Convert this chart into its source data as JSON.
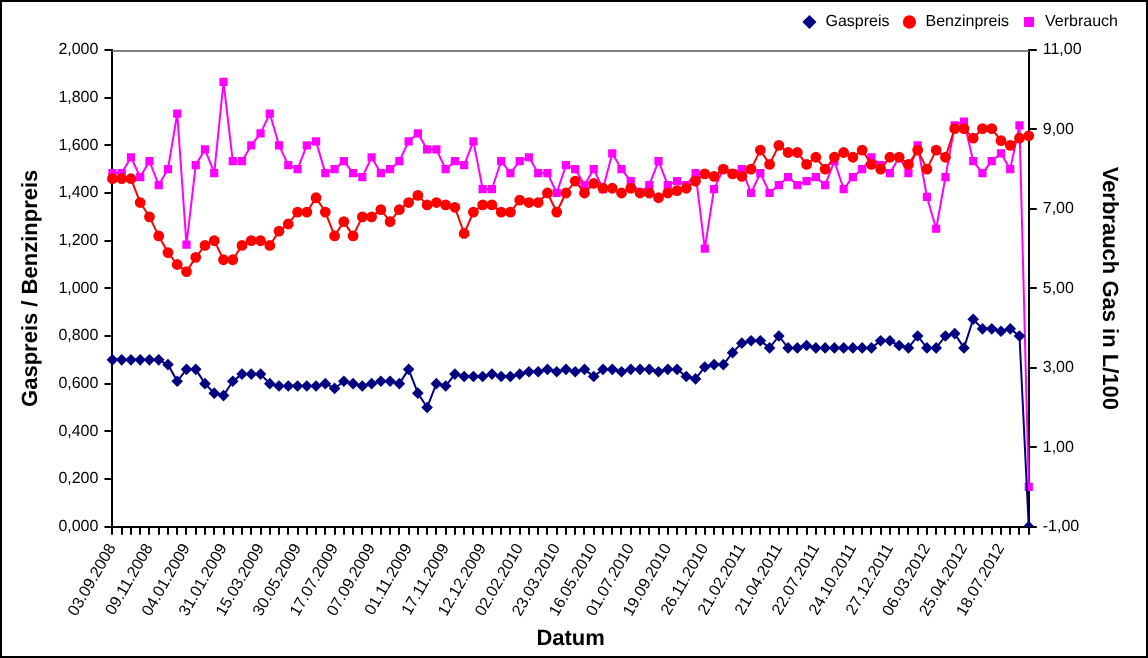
{
  "chart_data": {
    "type": "line",
    "xlabel": "Datum",
    "ylabel": "Gaspreis / Benzinpreis",
    "y2label": "Verbrauch Gas in L/100",
    "categories": [
      "03.09.2008",
      null,
      null,
      null,
      "09.11.2008",
      null,
      null,
      null,
      "04.01.2009",
      null,
      null,
      null,
      "31.01.2009",
      null,
      null,
      null,
      "15.03.2009",
      null,
      null,
      null,
      "30.05.2009",
      null,
      null,
      null,
      "17.07.2009",
      null,
      null,
      null,
      "07.09.2009",
      null,
      null,
      null,
      "01.11.2009",
      null,
      null,
      null,
      "17.11.2009",
      null,
      null,
      null,
      "12.12.2009",
      null,
      null,
      null,
      "02.02.2010",
      null,
      null,
      null,
      "23.03.2010",
      null,
      null,
      null,
      "16.05.2010",
      null,
      null,
      null,
      "01.07.2010",
      null,
      null,
      null,
      "19.09.2010",
      null,
      null,
      null,
      "26.11.2010",
      null,
      null,
      null,
      "21.02.2011",
      null,
      null,
      null,
      "21.04.2011",
      null,
      null,
      null,
      "22.07.2011",
      null,
      null,
      null,
      "24.10.2011",
      null,
      null,
      null,
      "27.12.2011",
      null,
      null,
      null,
      "06.03.2012",
      null,
      null,
      null,
      "25.04.2012",
      null,
      null,
      null,
      "18.07.2012",
      null,
      null,
      null
    ],
    "series": [
      {
        "name": "Gaspreis",
        "color": "#000080",
        "marker": "diamond",
        "values": [
          0.7,
          0.7,
          0.7,
          0.7,
          0.7,
          0.7,
          0.68,
          0.61,
          0.66,
          0.66,
          0.6,
          0.56,
          0.55,
          0.61,
          0.64,
          0.64,
          0.64,
          0.6,
          0.59,
          0.59,
          0.59,
          0.59,
          0.59,
          0.6,
          0.58,
          0.61,
          0.6,
          0.59,
          0.6,
          0.61,
          0.61,
          0.6,
          0.66,
          0.56,
          0.5,
          0.6,
          0.59,
          0.64,
          0.63,
          0.63,
          0.63,
          0.64,
          0.63,
          0.63,
          0.64,
          0.65,
          0.65,
          0.66,
          0.65,
          0.66,
          0.65,
          0.66,
          0.63,
          0.66,
          0.66,
          0.65,
          0.66,
          0.66,
          0.66,
          0.65,
          0.66,
          0.66,
          0.63,
          0.62,
          0.67,
          0.68,
          0.68,
          0.73,
          0.77,
          0.78,
          0.78,
          0.75,
          0.8,
          0.75,
          0.75,
          0.76,
          0.75,
          0.75,
          0.75,
          0.75,
          0.75,
          0.75,
          0.75,
          0.78,
          0.78,
          0.76,
          0.75,
          0.8,
          0.75,
          0.75,
          0.8,
          0.81,
          0.75,
          0.87,
          0.83,
          0.83,
          0.82,
          0.83,
          0.8,
          0.0
        ]
      },
      {
        "name": "Benzinpreis",
        "color": "#ff0000",
        "marker": "circle",
        "values": [
          1.46,
          1.46,
          1.46,
          1.36,
          1.3,
          1.22,
          1.15,
          1.1,
          1.07,
          1.13,
          1.18,
          1.2,
          1.12,
          1.12,
          1.18,
          1.2,
          1.2,
          1.18,
          1.24,
          1.27,
          1.32,
          1.32,
          1.38,
          1.32,
          1.22,
          1.28,
          1.22,
          1.3,
          1.3,
          1.33,
          1.28,
          1.33,
          1.36,
          1.39,
          1.35,
          1.36,
          1.35,
          1.34,
          1.23,
          1.32,
          1.35,
          1.35,
          1.32,
          1.32,
          1.37,
          1.36,
          1.36,
          1.4,
          1.32,
          1.4,
          1.45,
          1.4,
          1.44,
          1.42,
          1.42,
          1.4,
          1.42,
          1.4,
          1.4,
          1.38,
          1.4,
          1.41,
          1.42,
          1.45,
          1.48,
          1.47,
          1.5,
          1.48,
          1.47,
          1.5,
          1.58,
          1.52,
          1.6,
          1.57,
          1.57,
          1.52,
          1.55,
          1.5,
          1.55,
          1.57,
          1.55,
          1.58,
          1.52,
          1.5,
          1.55,
          1.55,
          1.52,
          1.58,
          1.5,
          1.58,
          1.55,
          1.67,
          1.67,
          1.63,
          1.67,
          1.67,
          1.62,
          1.6,
          1.63,
          1.64
        ]
      },
      {
        "name": "Verbrauch",
        "color": "#ff00ff",
        "marker": "square",
        "axis": "y2",
        "values": [
          7.9,
          7.9,
          8.3,
          7.8,
          8.2,
          7.6,
          8.0,
          9.4,
          6.1,
          8.1,
          8.5,
          7.9,
          10.2,
          8.2,
          8.2,
          8.6,
          8.9,
          9.4,
          8.6,
          8.1,
          8.0,
          8.6,
          8.7,
          7.9,
          8.0,
          8.2,
          7.9,
          7.8,
          8.3,
          7.9,
          8.0,
          8.2,
          8.7,
          8.9,
          8.5,
          8.5,
          8.0,
          8.2,
          8.1,
          8.7,
          7.5,
          7.5,
          8.2,
          7.9,
          8.2,
          8.3,
          7.9,
          7.9,
          7.4,
          8.1,
          8.0,
          7.6,
          8.0,
          7.5,
          8.4,
          8.0,
          7.7,
          7.4,
          7.6,
          8.2,
          7.6,
          7.7,
          7.6,
          7.9,
          6.0,
          7.5,
          8.0,
          7.9,
          8.0,
          7.4,
          7.9,
          7.4,
          7.6,
          7.8,
          7.6,
          7.7,
          7.8,
          7.6,
          8.2,
          7.5,
          7.8,
          8.0,
          8.3,
          8.1,
          7.9,
          8.3,
          7.9,
          8.6,
          7.3,
          6.5,
          7.8,
          9.1,
          9.2,
          8.2,
          7.9,
          8.2,
          8.4,
          8.0,
          9.1,
          0.0
        ]
      }
    ],
    "ylim": [
      0,
      2
    ],
    "yticks": [
      {
        "value": 0,
        "label": "0,000"
      },
      {
        "value": 0.2,
        "label": "0,200"
      },
      {
        "value": 0.4,
        "label": "0,400"
      },
      {
        "value": 0.6,
        "label": "0,600"
      },
      {
        "value": 0.8,
        "label": "0,800"
      },
      {
        "value": 1,
        "label": "1,000"
      },
      {
        "value": 1.2,
        "label": "1,200"
      },
      {
        "value": 1.4,
        "label": "1,400"
      },
      {
        "value": 1.6,
        "label": "1,600"
      },
      {
        "value": 1.8,
        "label": "1,800"
      },
      {
        "value": 2,
        "label": "2,000"
      }
    ],
    "y2lim": [
      -1,
      11
    ],
    "y2ticks": [
      {
        "value": -1,
        "label": "-1,00"
      },
      {
        "value": 1,
        "label": "1,00"
      },
      {
        "value": 3,
        "label": "3,00"
      },
      {
        "value": 5,
        "label": "5,00"
      },
      {
        "value": 7,
        "label": "7,00"
      },
      {
        "value": 9,
        "label": "9,00"
      },
      {
        "value": 11,
        "label": "11,00"
      }
    ],
    "grid": false,
    "legend": "top right"
  }
}
